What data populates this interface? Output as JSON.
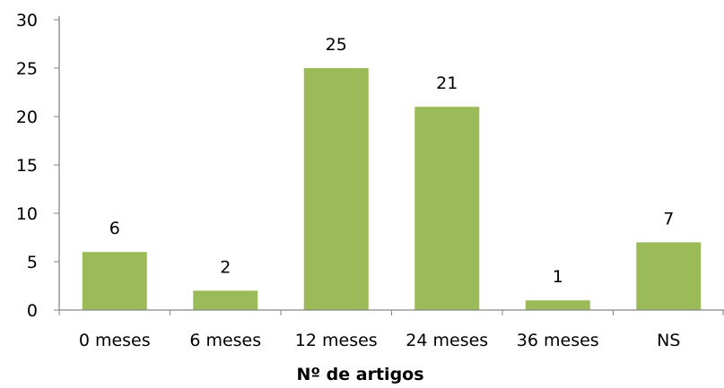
{
  "chart_data": {
    "type": "bar",
    "categories": [
      "0 meses",
      "6 meses",
      "12 meses",
      "24 meses",
      "36 meses",
      "NS"
    ],
    "values": [
      6,
      2,
      25,
      21,
      1,
      7
    ],
    "title": "",
    "xlabel": "Nº de artigos",
    "ylabel": "",
    "ylim": [
      0,
      30
    ],
    "yticks": [
      0,
      5,
      10,
      15,
      20,
      25,
      30
    ],
    "grid": false,
    "legend": "none",
    "data_labels": true,
    "bar_color": "#9BBB59",
    "axis_color": "#868686"
  }
}
